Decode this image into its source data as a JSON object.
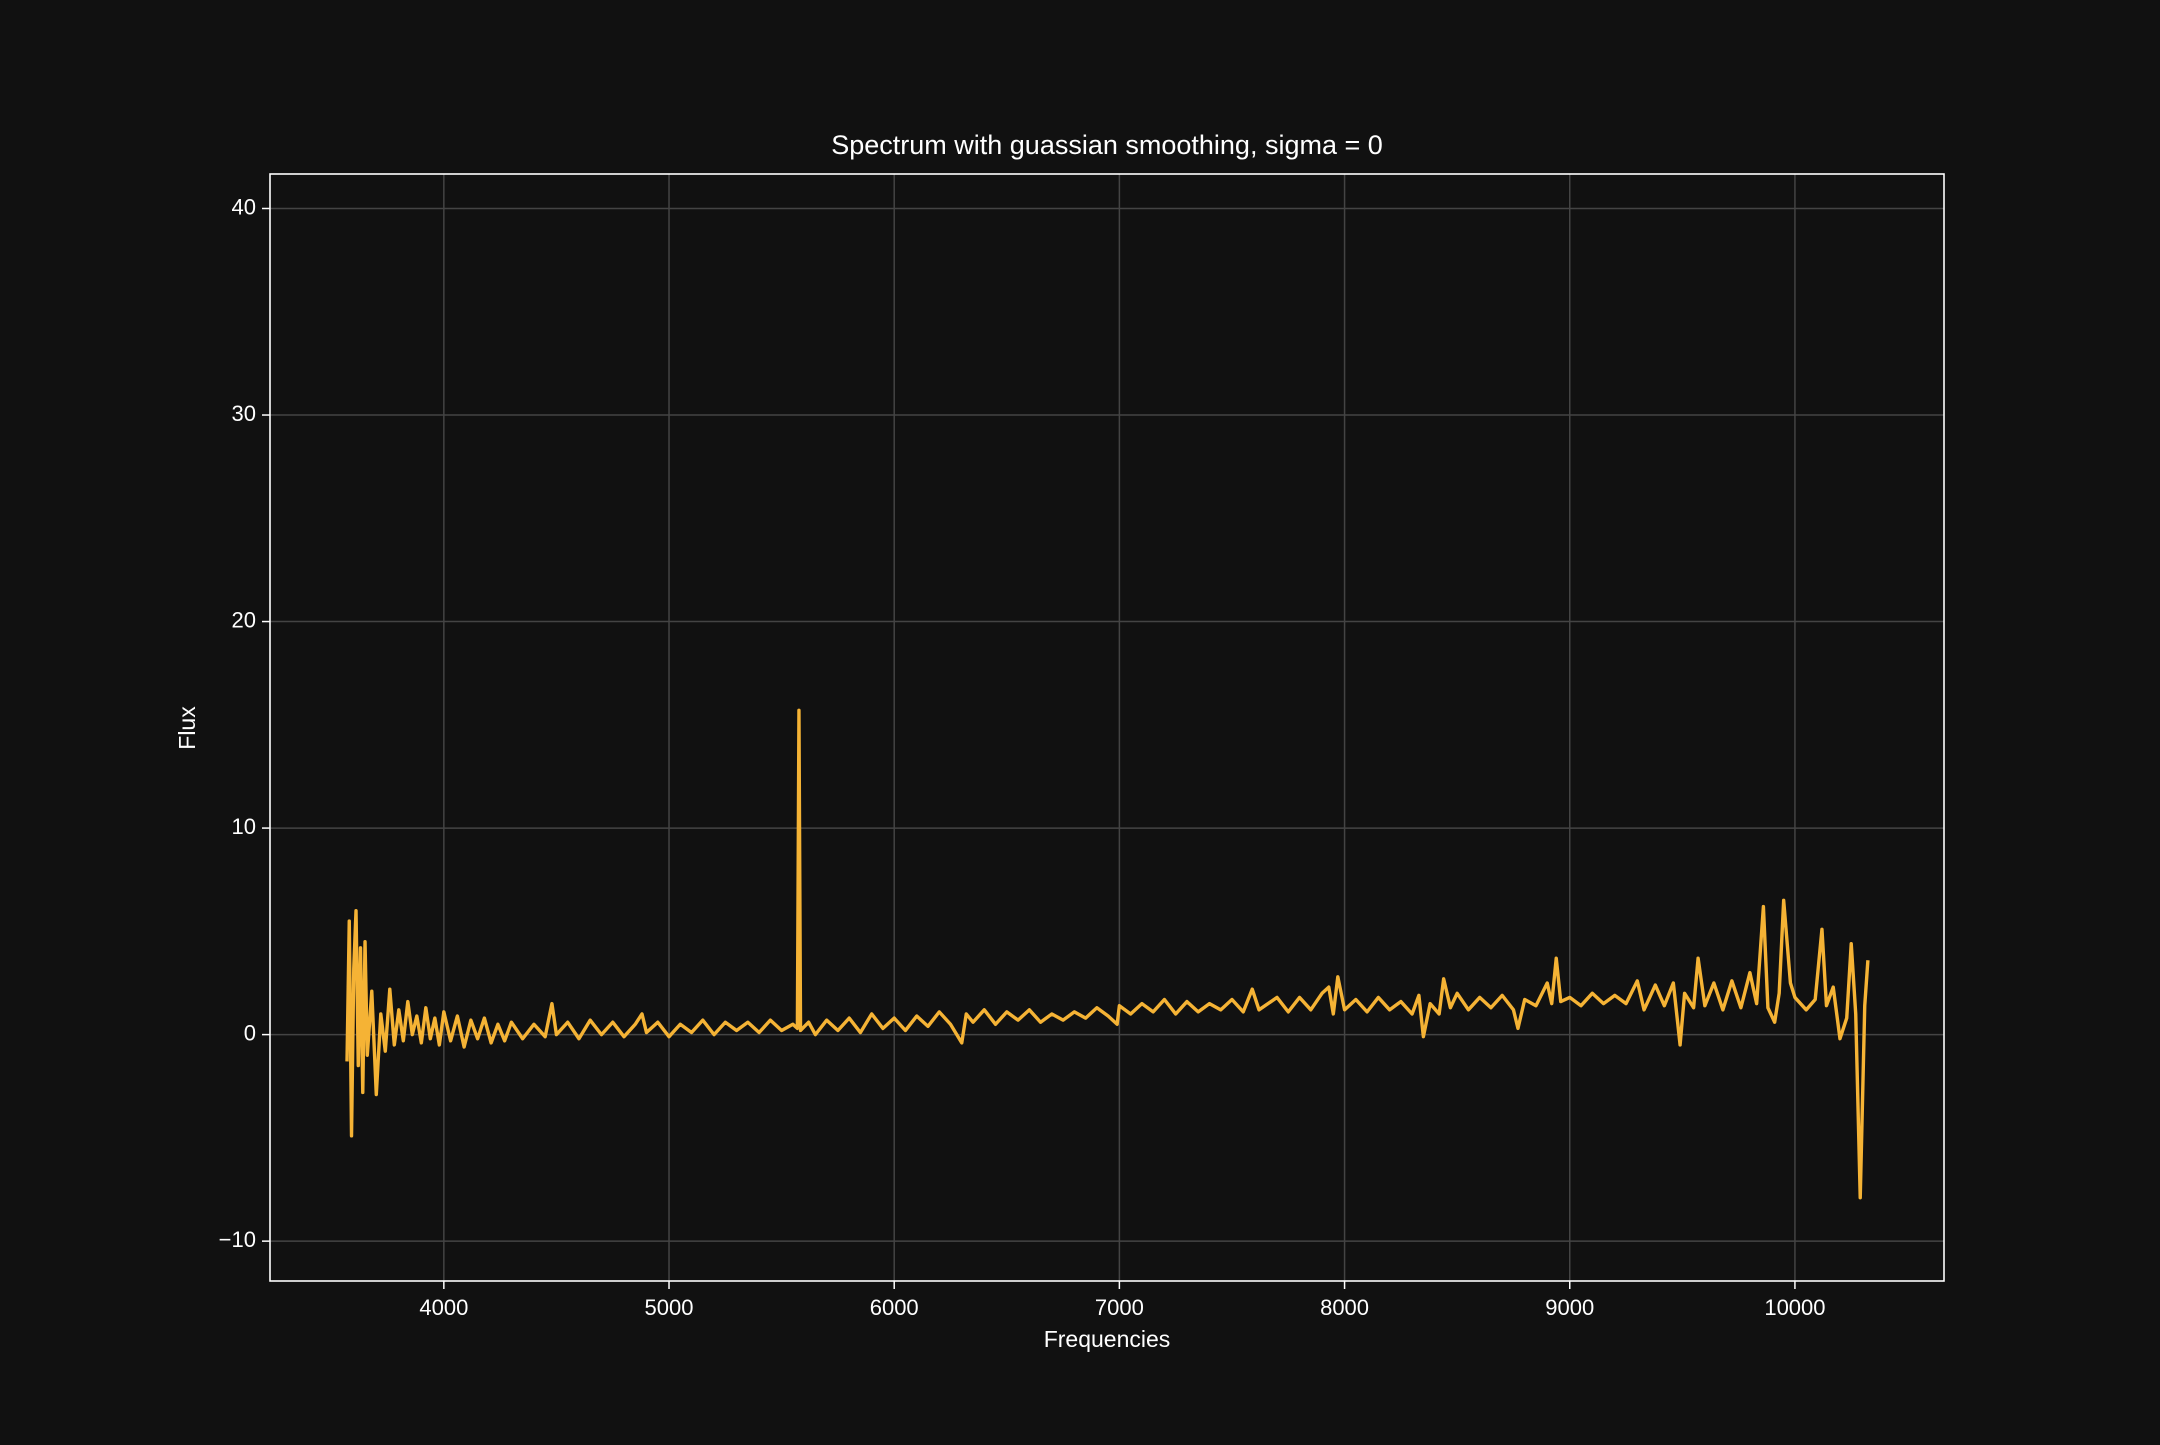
{
  "chart_data": {
    "type": "line",
    "title": "Spectrum with guassian smoothing, sigma = 0",
    "x_label": "Frequencies",
    "y_label": "Flux",
    "color": "#f5b335",
    "grid": true,
    "xlim": [
      3228,
      10662
    ],
    "ylim": [
      -11.93,
      41.67
    ],
    "xticks": [
      4000,
      5000,
      6000,
      7000,
      8000,
      9000,
      10000
    ],
    "yticks": [
      {
        "value": -10,
        "label": "−10"
      },
      0,
      10,
      20,
      30,
      40
    ],
    "x": [
      3570,
      3580,
      3590,
      3600,
      3610,
      3620,
      3630,
      3640,
      3650,
      3660,
      3680,
      3700,
      3720,
      3740,
      3760,
      3780,
      3800,
      3820,
      3840,
      3860,
      3880,
      3900,
      3920,
      3940,
      3960,
      3980,
      4000,
      4030,
      4060,
      4090,
      4120,
      4150,
      4180,
      4210,
      4240,
      4270,
      4300,
      4350,
      4400,
      4450,
      4480,
      4500,
      4550,
      4600,
      4650,
      4700,
      4750,
      4800,
      4850,
      4880,
      4900,
      4950,
      5000,
      5050,
      5100,
      5150,
      5200,
      5250,
      5300,
      5350,
      5400,
      5450,
      5500,
      5550,
      5570,
      5577,
      5584,
      5620,
      5650,
      5700,
      5750,
      5800,
      5850,
      5900,
      5950,
      6000,
      6050,
      6100,
      6150,
      6200,
      6250,
      6300,
      6320,
      6350,
      6400,
      6450,
      6500,
      6550,
      6600,
      6650,
      6700,
      6750,
      6800,
      6850,
      6900,
      6950,
      6990,
      7000,
      7050,
      7100,
      7150,
      7200,
      7250,
      7300,
      7350,
      7400,
      7450,
      7500,
      7550,
      7590,
      7620,
      7700,
      7750,
      7800,
      7850,
      7900,
      7930,
      7950,
      7970,
      8000,
      8050,
      8100,
      8150,
      8200,
      8250,
      8300,
      8330,
      8350,
      8380,
      8420,
      8440,
      8470,
      8500,
      8550,
      8600,
      8650,
      8700,
      8750,
      8770,
      8800,
      8850,
      8900,
      8920,
      8940,
      8960,
      9000,
      9050,
      9100,
      9150,
      9200,
      9250,
      9300,
      9330,
      9380,
      9420,
      9460,
      9490,
      9510,
      9550,
      9570,
      9600,
      9640,
      9680,
      9720,
      9760,
      9800,
      9830,
      9860,
      9880,
      9910,
      9930,
      9950,
      9980,
      10000,
      10050,
      10090,
      10120,
      10140,
      10170,
      10200,
      10230,
      10250,
      10270,
      10290,
      10310,
      10324
    ],
    "values": [
      -1.3,
      5.5,
      -4.9,
      3.2,
      6.0,
      -1.5,
      4.2,
      -2.8,
      4.5,
      -1.0,
      2.1,
      -2.9,
      1.0,
      -0.8,
      2.2,
      -0.5,
      1.2,
      -0.3,
      1.6,
      0.0,
      0.9,
      -0.4,
      1.3,
      -0.2,
      0.8,
      -0.5,
      1.1,
      -0.3,
      0.9,
      -0.6,
      0.7,
      -0.2,
      0.8,
      -0.4,
      0.5,
      -0.3,
      0.6,
      -0.2,
      0.5,
      -0.1,
      1.5,
      0.0,
      0.6,
      -0.2,
      0.7,
      0.0,
      0.6,
      -0.1,
      0.5,
      1.0,
      0.1,
      0.6,
      -0.1,
      0.5,
      0.1,
      0.7,
      0.0,
      0.6,
      0.2,
      0.6,
      0.1,
      0.7,
      0.2,
      0.5,
      0.3,
      15.7,
      0.2,
      0.6,
      0.0,
      0.7,
      0.2,
      0.8,
      0.1,
      1.0,
      0.3,
      0.8,
      0.2,
      0.9,
      0.4,
      1.1,
      0.5,
      -0.4,
      1.0,
      0.6,
      1.2,
      0.5,
      1.1,
      0.7,
      1.2,
      0.6,
      1.0,
      0.7,
      1.1,
      0.8,
      1.3,
      0.9,
      0.5,
      1.4,
      1.0,
      1.5,
      1.1,
      1.7,
      1.0,
      1.6,
      1.1,
      1.5,
      1.2,
      1.7,
      1.1,
      2.2,
      1.2,
      1.8,
      1.1,
      1.8,
      1.2,
      2.0,
      2.3,
      1.0,
      2.8,
      1.2,
      1.7,
      1.1,
      1.8,
      1.2,
      1.6,
      1.0,
      1.9,
      -0.1,
      1.5,
      1.0,
      2.7,
      1.3,
      2.0,
      1.2,
      1.8,
      1.3,
      1.9,
      1.2,
      0.3,
      1.7,
      1.4,
      2.5,
      1.5,
      3.7,
      1.6,
      1.8,
      1.4,
      2.0,
      1.5,
      1.9,
      1.5,
      2.6,
      1.2,
      2.4,
      1.4,
      2.5,
      -0.5,
      2.0,
      1.3,
      3.7,
      1.4,
      2.5,
      1.2,
      2.6,
      1.3,
      3.0,
      1.5,
      6.2,
      1.3,
      0.6,
      2.0,
      6.5,
      2.5,
      1.8,
      1.2,
      1.7,
      5.1,
      1.4,
      2.3,
      -0.2,
      0.8,
      4.4,
      1.0,
      -7.9,
      1.4,
      3.6
    ]
  }
}
